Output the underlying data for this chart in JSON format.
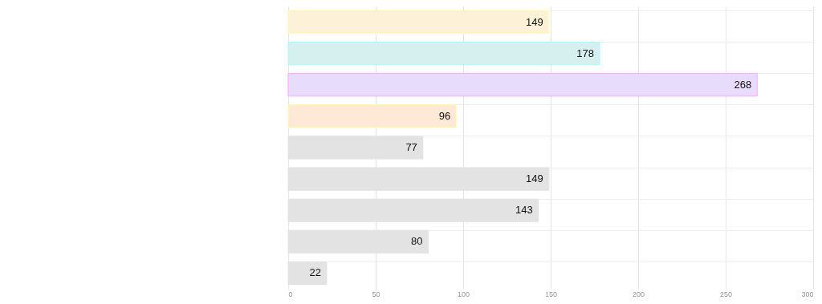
{
  "chart_data": {
    "type": "bar",
    "orientation": "horizontal",
    "categories": [
      null,
      null,
      null,
      null,
      null,
      null,
      null,
      null,
      null
    ],
    "values": [
      149,
      178,
      268,
      96,
      77,
      149,
      143,
      80,
      22
    ],
    "data_labels": true,
    "colors": [
      "#fdf1d8",
      "#d6f0f0",
      "#e8dcfc",
      "#fde9d6",
      "#e3e3e3",
      "#e3e3e3",
      "#e3e3e3",
      "#e3e3e3",
      "#e3e3e3"
    ],
    "xlim": [
      0,
      300
    ],
    "xticks": [
      0,
      50,
      100,
      150,
      200,
      250,
      300
    ],
    "grid": true,
    "tick_labels": "x"
  }
}
